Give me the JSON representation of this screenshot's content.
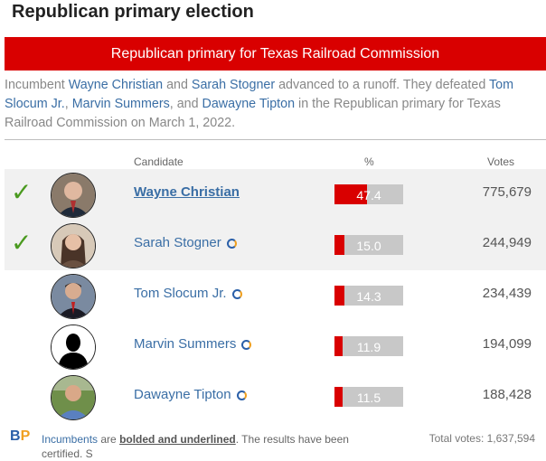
{
  "title": "Republican primary election",
  "banner": "Republican primary for Texas Railroad Commission",
  "intro": {
    "p1": "Incumbent ",
    "c1": "Wayne Christian",
    "p2": " and ",
    "c2": "Sarah Stogner",
    "p3": " advanced to a runoff. They defeated ",
    "c3": "Tom Slocum Jr.",
    "p4": ", ",
    "c4": "Marvin Summers",
    "p5": ", and ",
    "c5": "Dawayne Tipton",
    "p6": " in the Republican primary for Texas Railroad Commission on March 1, 2022."
  },
  "headers": {
    "candidate": "Candidate",
    "pct": "%",
    "votes": "Votes"
  },
  "candidates": [
    {
      "name": "Wayne Christian",
      "pct": "47.4",
      "pct_value": 47.4,
      "votes": "775,679",
      "winner": true,
      "incumbent": true,
      "icon": "checkmark-icon"
    },
    {
      "name": "Sarah Stogner",
      "pct": "15.0",
      "pct_value": 15.0,
      "votes": "244,949",
      "winner": true,
      "incumbent": false,
      "icon": "checkmark-icon"
    },
    {
      "name": "Tom Slocum Jr.",
      "pct": "14.3",
      "pct_value": 14.3,
      "votes": "234,439",
      "winner": false,
      "incumbent": false
    },
    {
      "name": "Marvin Summers",
      "pct": "11.9",
      "pct_value": 11.9,
      "votes": "194,099",
      "winner": false,
      "incumbent": false
    },
    {
      "name": "Dawayne Tipton",
      "pct": "11.5",
      "pct_value": 11.5,
      "votes": "188,428",
      "winner": false,
      "incumbent": false
    }
  ],
  "footer": {
    "logo_b": "B",
    "logo_p": "P",
    "t1": "Incumbents",
    "t2": " are ",
    "t3": "bolded and underlined",
    "t4": ". The results have been certified. S",
    "total": "Total votes: 1,637,594"
  },
  "colors": {
    "accent": "#d90000",
    "link": "#3a6ea5",
    "check": "#4a9a1f"
  }
}
